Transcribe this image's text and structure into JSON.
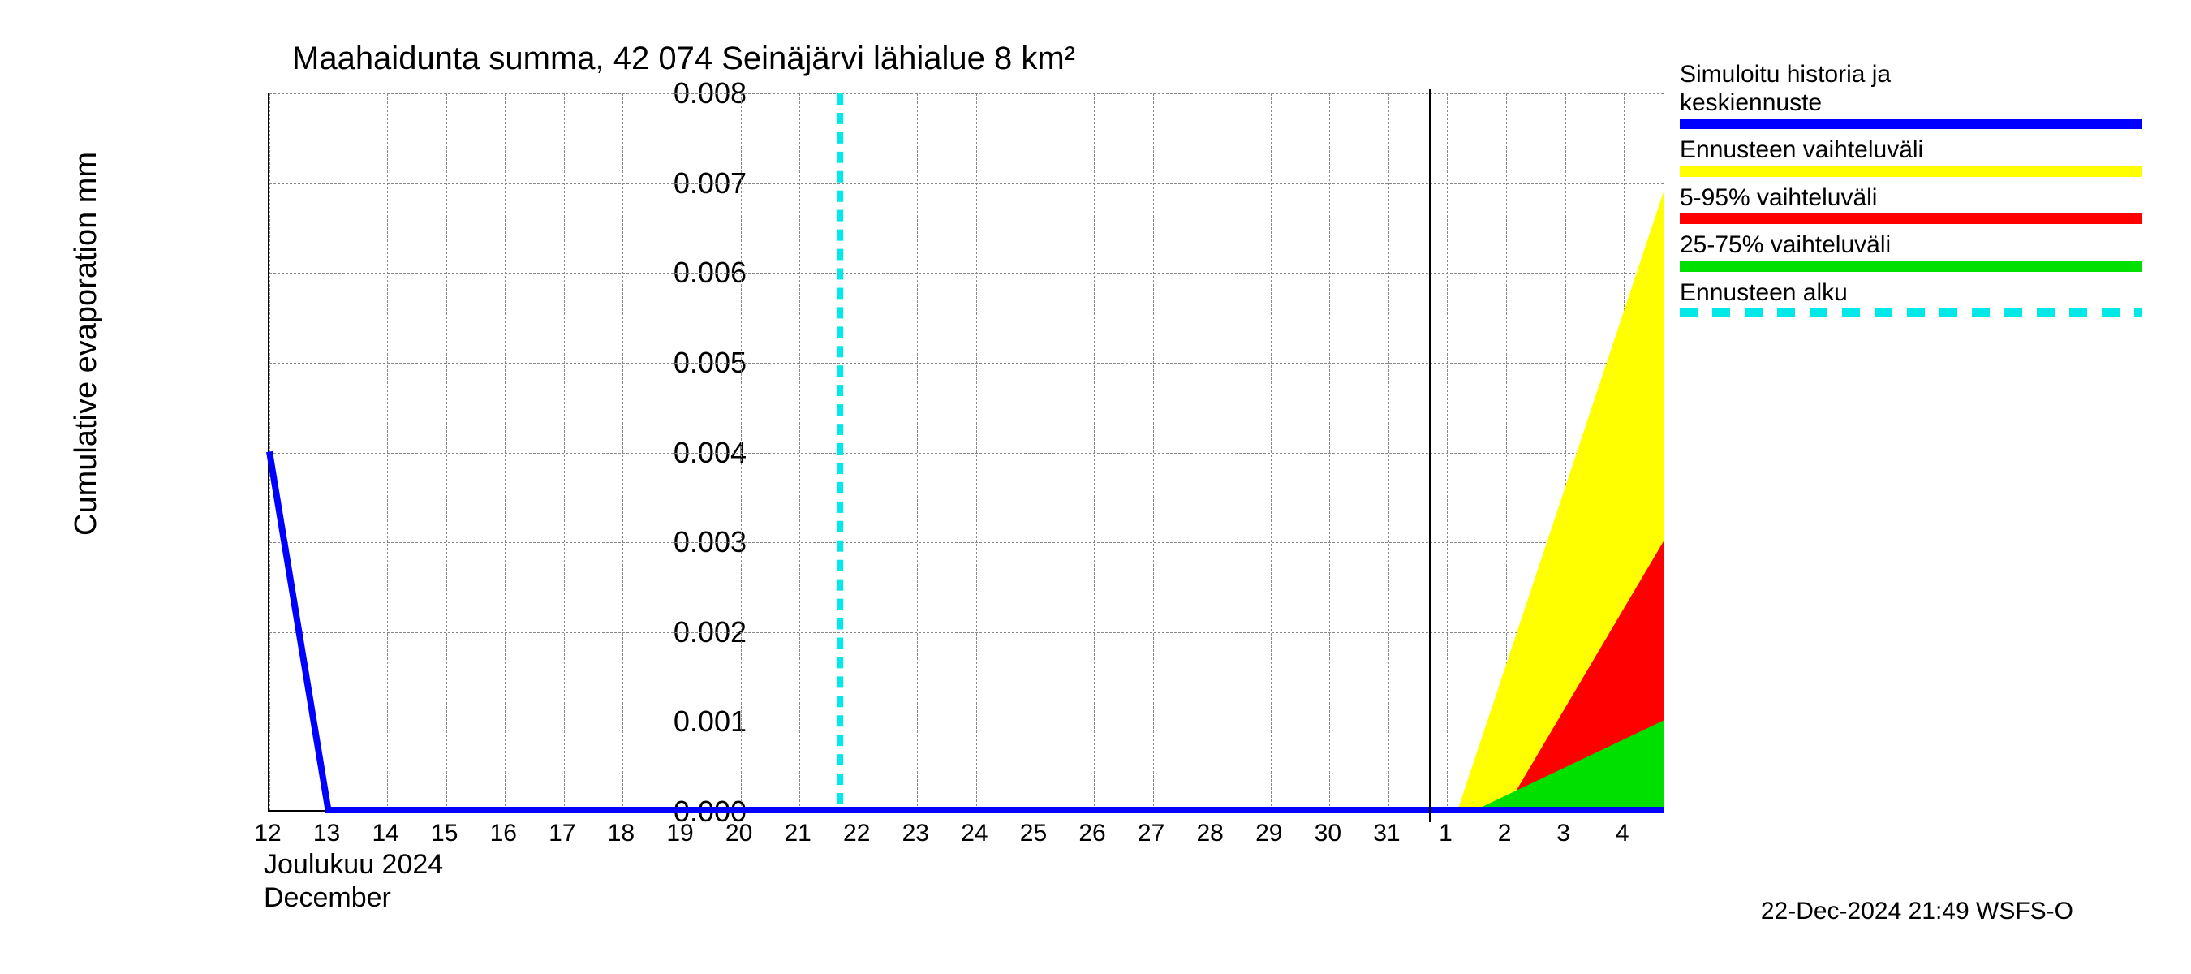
{
  "chart": {
    "type": "line-area-forecast",
    "title": "Maahaidunta summa, 42 074 Seinäjärvi lähialue 8 km²",
    "ylabel": "Cumulative evaporation   mm",
    "ylim": [
      0.0,
      0.008
    ],
    "ytick_step": 0.001,
    "yticks": [
      "0.000",
      "0.001",
      "0.002",
      "0.003",
      "0.004",
      "0.005",
      "0.006",
      "0.007",
      "0.008"
    ],
    "title_fontsize": 40,
    "label_fontsize": 38,
    "tick_fontsize": 34,
    "xtick_fontsize": 30,
    "background_color": "#ffffff",
    "grid_color": "#888888",
    "axis_color": "#000000",
    "x_axis": {
      "dates": [
        "12",
        "13",
        "14",
        "15",
        "16",
        "17",
        "18",
        "19",
        "20",
        "21",
        "22",
        "23",
        "24",
        "25",
        "26",
        "27",
        "28",
        "29",
        "30",
        "31",
        "1",
        "2",
        "3",
        "4"
      ],
      "month_labels": [
        "Joulukuu  2024",
        "December"
      ],
      "month_separator_at": "1"
    },
    "forecast_start_date": "21.7",
    "series": {
      "history_mean": {
        "color": "#0000ff",
        "line_width": 8,
        "points": [
          {
            "x": "12",
            "y": 0.004
          },
          {
            "x": "13",
            "y": 0.0
          },
          {
            "x": "4.7",
            "y": 0.0
          }
        ]
      },
      "band_full": {
        "color": "#ffff00",
        "start_x": "1.2",
        "end_x": "4.7",
        "low_start": 0.0,
        "low_end": 0.0,
        "high_start": 0.0,
        "high_end": 0.0069
      },
      "band_5_95": {
        "color": "#ff0000",
        "start_x": "2",
        "end_x": "4.7",
        "low_start": 0.0,
        "low_end": 0.0,
        "high_start": 0.0,
        "high_end": 0.003
      },
      "band_25_75": {
        "color": "#00e000",
        "start_x": "1.5",
        "end_x": "4.7",
        "low_start": 0.0,
        "low_end": 0.0,
        "high_start": 0.0,
        "high_end": 0.001
      },
      "forecast_start_line": {
        "color": "#00e8e8",
        "dash": "14 10",
        "line_width": 8
      }
    },
    "timestamp": "22-Dec-2024 21:49 WSFS-O"
  },
  "legend": {
    "items": [
      {
        "label": "Simuloitu historia ja\nkeskiennuste",
        "color": "#0000ff",
        "style": "solid"
      },
      {
        "label": "Ennusteen vaihteluväli",
        "color": "#ffff00",
        "style": "solid"
      },
      {
        "label": "5-95% vaihteluväli",
        "color": "#ff0000",
        "style": "solid"
      },
      {
        "label": "25-75% vaihteluväli",
        "color": "#00e000",
        "style": "solid"
      },
      {
        "label": "Ennusteen alku",
        "color": "#00e8e8",
        "style": "dashed"
      }
    ]
  }
}
